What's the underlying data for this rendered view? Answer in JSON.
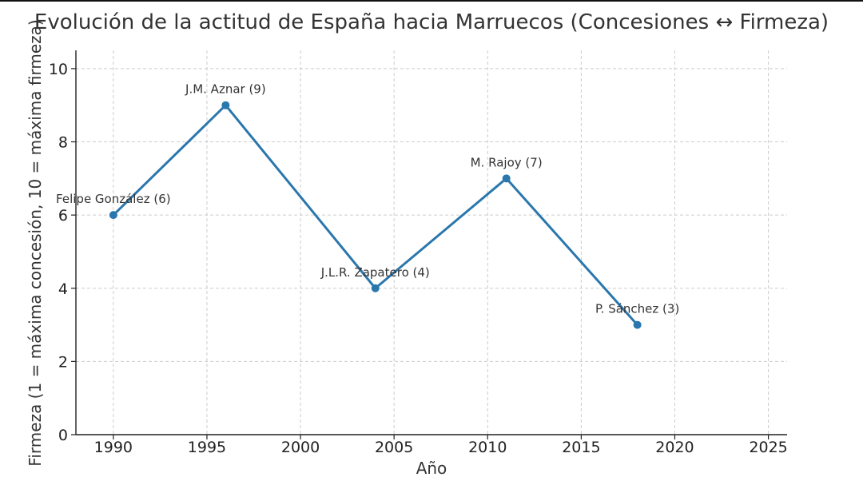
{
  "chart_data": {
    "type": "line",
    "title": "Evolución de la actitud de España hacia Marruecos (Concesiones ↔ Firmeza)",
    "xlabel": "Año",
    "ylabel": "Firmeza (1 = máxima concesión, 10 = máxima firmeza)",
    "xlim": [
      1988,
      2026
    ],
    "ylim": [
      0,
      10.5
    ],
    "xticks": [
      1990,
      1995,
      2000,
      2005,
      2010,
      2015,
      2020,
      2025
    ],
    "yticks": [
      0,
      2,
      4,
      6,
      8,
      10
    ],
    "grid": true,
    "color": "#2a77ad",
    "points": [
      {
        "x": 1990,
        "y": 6,
        "label": "Felipe González (6)"
      },
      {
        "x": 1996,
        "y": 9,
        "label": "J.M. Aznar (9)"
      },
      {
        "x": 2004,
        "y": 4,
        "label": "J.L.R. Zapatero (4)"
      },
      {
        "x": 2011,
        "y": 7,
        "label": "M. Rajoy (7)"
      },
      {
        "x": 2018,
        "y": 3,
        "label": "P. Sánchez (3)"
      }
    ]
  }
}
